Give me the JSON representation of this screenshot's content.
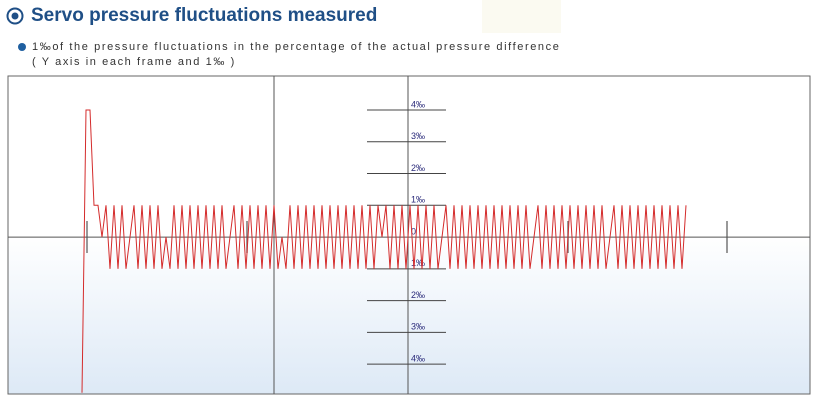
{
  "chart_data": {
    "type": "line",
    "title": "Servo pressure fluctuations measured",
    "subtitle": [
      "1‰of the pressure fluctuations in the percentage of the actual pressure difference",
      "( Y axis in each frame  and 1‰ )"
    ],
    "color": "#d42b2b",
    "values": [
      -4.9,
      4,
      4,
      1,
      1,
      0,
      1,
      -1,
      1,
      -1,
      1,
      -1,
      0,
      1,
      -1,
      1,
      -1,
      1,
      -1,
      1,
      -1,
      0,
      -1,
      1,
      -1,
      1,
      -1,
      1,
      -1,
      1,
      -1,
      1,
      -1,
      1,
      -1,
      1,
      -1,
      0,
      1,
      -1,
      1,
      -1,
      1,
      -1,
      1,
      -1,
      1,
      -1,
      1,
      -1,
      0,
      -1,
      1,
      -1,
      1,
      -1,
      1,
      -1,
      1,
      -1,
      1,
      -1,
      1,
      -1,
      1,
      -1,
      1,
      -1,
      1,
      -1,
      1,
      -1,
      1,
      -1,
      1,
      0,
      1,
      -1,
      1,
      -1,
      1,
      -1,
      1,
      -1,
      1,
      -1,
      1,
      -1,
      1,
      -1,
      0,
      1,
      -1,
      1,
      -1,
      1,
      -1,
      1,
      -1,
      1,
      -1,
      1,
      -1,
      1,
      -1,
      1,
      -1,
      1,
      -1,
      1,
      -1,
      1,
      -1,
      0,
      1,
      -1,
      1,
      -1,
      1,
      -1,
      1,
      -1,
      1,
      -1,
      1,
      -1,
      1,
      -1,
      1,
      -1,
      1,
      -1,
      0,
      1,
      -1,
      1,
      -1,
      1,
      -1,
      1,
      -1,
      1,
      -1,
      1,
      -1,
      1,
      -1,
      1,
      -1,
      1,
      -1,
      1
    ],
    "ylim": [
      -4.94,
      5.07
    ],
    "yticks": [
      {
        "value": 4,
        "label": "4‰"
      },
      {
        "value": 3,
        "label": "3‰"
      },
      {
        "value": 2,
        "label": "2‰"
      },
      {
        "value": 1,
        "label": "1‰"
      },
      0,
      {
        "value": -1,
        "label": "1‰"
      },
      {
        "value": -2,
        "label": "2‰"
      },
      {
        "value": -3,
        "label": "3‰"
      },
      {
        "value": -4,
        "label": "4‰"
      }
    ]
  }
}
